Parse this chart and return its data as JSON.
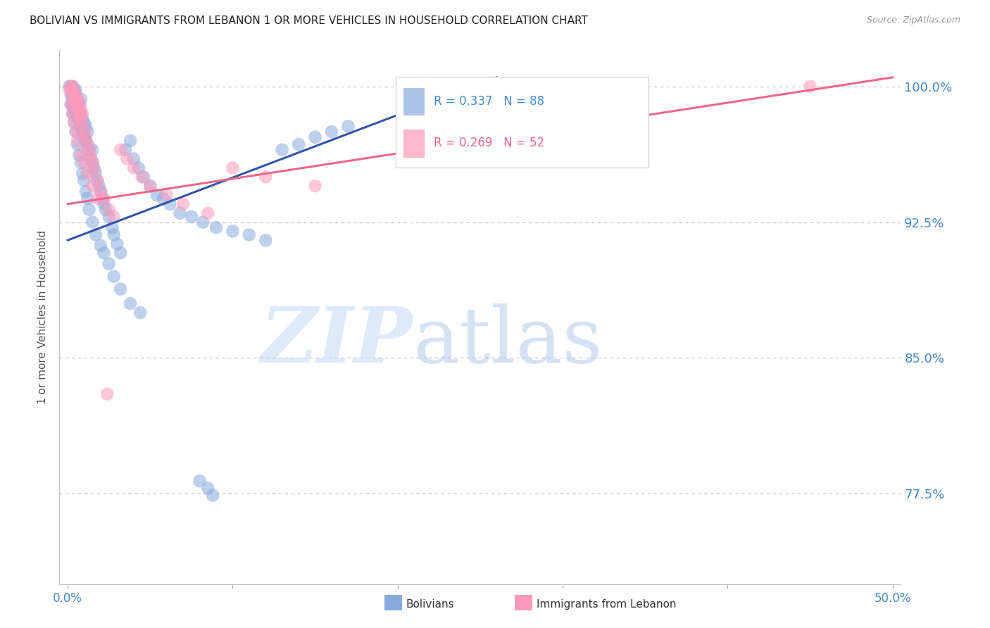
{
  "title": "BOLIVIAN VS IMMIGRANTS FROM LEBANON 1 OR MORE VEHICLES IN HOUSEHOLD CORRELATION CHART",
  "source": "Source: ZipAtlas.com",
  "ylabel": "1 or more Vehicles in Household",
  "ytick_labels": [
    "100.0%",
    "92.5%",
    "85.0%",
    "77.5%"
  ],
  "ytick_values": [
    1.0,
    0.925,
    0.85,
    0.775
  ],
  "ylim": [
    0.725,
    1.02
  ],
  "xlim": [
    -0.005,
    0.505
  ],
  "legend_R_blue": "R = 0.337",
  "legend_N_blue": "N = 88",
  "legend_R_pink": "R = 0.269",
  "legend_N_pink": "N = 52",
  "blue_color": "#88AADD",
  "pink_color": "#FF99BB",
  "blue_line_color": "#3355AA",
  "pink_line_color": "#EE6688",
  "background_color": "#FFFFFF",
  "grid_color": "#BBBBBB",
  "title_color": "#222222",
  "axis_color": "#4488CC",
  "blue_trendline": [
    0.0,
    0.915,
    0.26,
    1.005
  ],
  "pink_trendline": [
    0.0,
    0.935,
    0.5,
    1.005
  ],
  "blue_pts_x": [
    0.001,
    0.002,
    0.002,
    0.003,
    0.003,
    0.003,
    0.004,
    0.004,
    0.004,
    0.005,
    0.005,
    0.005,
    0.006,
    0.006,
    0.007,
    0.007,
    0.008,
    0.008,
    0.008,
    0.009,
    0.009,
    0.01,
    0.01,
    0.011,
    0.011,
    0.012,
    0.012,
    0.013,
    0.014,
    0.015,
    0.015,
    0.016,
    0.017,
    0.018,
    0.019,
    0.02,
    0.021,
    0.022,
    0.023,
    0.025,
    0.027,
    0.028,
    0.03,
    0.032,
    0.035,
    0.038,
    0.04,
    0.043,
    0.046,
    0.05,
    0.054,
    0.058,
    0.062,
    0.068,
    0.075,
    0.082,
    0.09,
    0.1,
    0.11,
    0.12,
    0.13,
    0.14,
    0.15,
    0.16,
    0.17,
    0.002,
    0.003,
    0.004,
    0.005,
    0.006,
    0.007,
    0.008,
    0.009,
    0.01,
    0.011,
    0.012,
    0.013,
    0.015,
    0.017,
    0.02,
    0.022,
    0.025,
    0.028,
    0.032,
    0.038,
    0.044,
    0.08,
    0.085,
    0.088
  ],
  "blue_pts_y": [
    1.0,
    0.995,
    1.0,
    0.99,
    0.995,
    1.0,
    0.988,
    0.993,
    0.998,
    0.985,
    0.99,
    0.998,
    0.983,
    0.992,
    0.981,
    0.99,
    0.978,
    0.985,
    0.993,
    0.975,
    0.982,
    0.972,
    0.98,
    0.97,
    0.978,
    0.968,
    0.975,
    0.965,
    0.96,
    0.958,
    0.965,
    0.955,
    0.952,
    0.948,
    0.945,
    0.942,
    0.938,
    0.935,
    0.932,
    0.928,
    0.922,
    0.918,
    0.913,
    0.908,
    0.965,
    0.97,
    0.96,
    0.955,
    0.95,
    0.945,
    0.94,
    0.938,
    0.935,
    0.93,
    0.928,
    0.925,
    0.922,
    0.92,
    0.918,
    0.915,
    0.965,
    0.968,
    0.972,
    0.975,
    0.978,
    0.99,
    0.985,
    0.98,
    0.975,
    0.968,
    0.962,
    0.958,
    0.952,
    0.948,
    0.942,
    0.938,
    0.932,
    0.925,
    0.918,
    0.912,
    0.908,
    0.902,
    0.895,
    0.888,
    0.88,
    0.875,
    0.782,
    0.778,
    0.774
  ],
  "pink_pts_x": [
    0.001,
    0.002,
    0.002,
    0.003,
    0.003,
    0.004,
    0.004,
    0.005,
    0.005,
    0.006,
    0.006,
    0.007,
    0.007,
    0.008,
    0.008,
    0.009,
    0.009,
    0.01,
    0.011,
    0.012,
    0.013,
    0.014,
    0.015,
    0.016,
    0.018,
    0.02,
    0.022,
    0.025,
    0.028,
    0.032,
    0.036,
    0.04,
    0.045,
    0.05,
    0.06,
    0.07,
    0.085,
    0.1,
    0.12,
    0.15,
    0.002,
    0.003,
    0.004,
    0.005,
    0.006,
    0.008,
    0.01,
    0.012,
    0.015,
    0.018,
    0.024,
    0.45
  ],
  "pink_pts_y": [
    0.998,
    0.998,
    1.0,
    0.995,
    1.0,
    0.992,
    0.997,
    0.99,
    0.995,
    0.988,
    0.993,
    0.985,
    0.991,
    0.982,
    0.988,
    0.979,
    0.985,
    0.975,
    0.972,
    0.968,
    0.965,
    0.961,
    0.958,
    0.954,
    0.948,
    0.942,
    0.938,
    0.932,
    0.928,
    0.965,
    0.96,
    0.955,
    0.95,
    0.945,
    0.94,
    0.935,
    0.93,
    0.955,
    0.95,
    0.945,
    0.99,
    0.985,
    0.98,
    0.975,
    0.97,
    0.962,
    0.958,
    0.952,
    0.945,
    0.938,
    0.83,
    1.0
  ]
}
